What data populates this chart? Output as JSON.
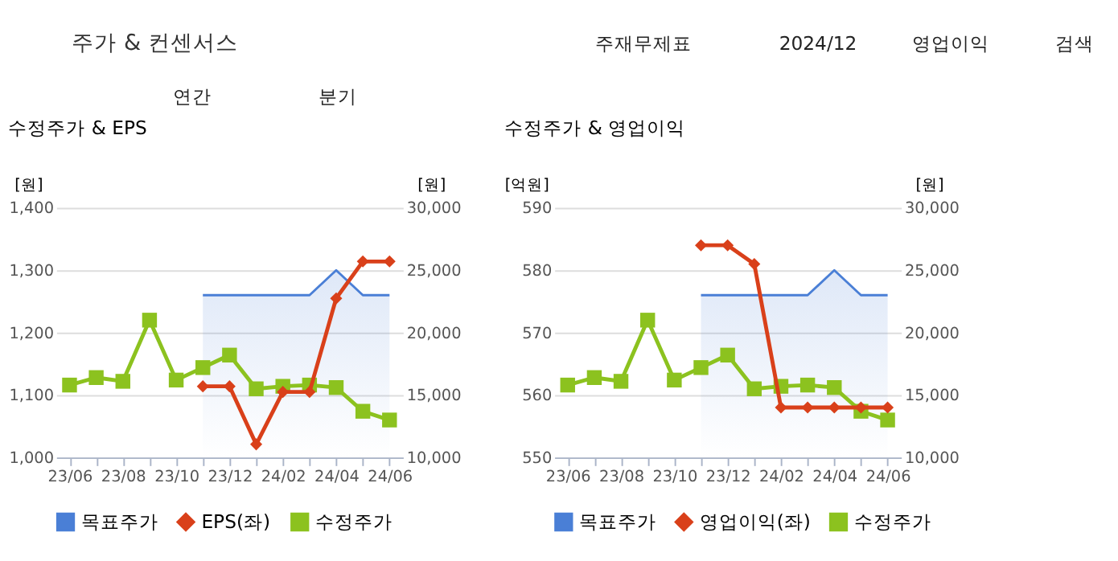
{
  "chart_data": [
    {
      "type": "other",
      "title": "주가 & 컨센서스",
      "annotations": [
        "주재무제표",
        "2024/12",
        "영업이익",
        "검색",
        "연간",
        "분기"
      ]
    },
    {
      "type": "line",
      "title": "수정주가 & EPS",
      "ylabel": "[원]",
      "y2label": "[원]",
      "categories": [
        "23/06",
        null,
        "23/08",
        null,
        "23/10",
        null,
        "23/12",
        null,
        "24/02",
        null,
        "24/04",
        null,
        "24/06"
      ],
      "ylim": [
        1000,
        1400
      ],
      "yticks": [
        {
          "value": 1000,
          "label": "1,000"
        },
        {
          "value": 1100,
          "label": "1,100"
        },
        {
          "value": 1200,
          "label": "1,200"
        },
        {
          "value": 1300,
          "label": "1,300"
        },
        {
          "value": 1400,
          "label": "1,400"
        }
      ],
      "y2lim": [
        10000,
        30000
      ],
      "y2ticks": [
        {
          "value": 10000,
          "label": "10,000"
        },
        {
          "value": 15000,
          "label": "15,000"
        },
        {
          "value": 20000,
          "label": "20,000"
        },
        {
          "value": 25000,
          "label": "25,000"
        },
        {
          "value": 30000,
          "label": "30,000"
        }
      ],
      "grid": "y",
      "legend": "bottom",
      "series": [
        {
          "name": "목표주가",
          "type": "area",
          "axis": "y2",
          "marker": "none",
          "color": "#4a7fd6",
          "values": [
            null,
            null,
            null,
            null,
            null,
            23000,
            23000,
            23000,
            23000,
            23000,
            25000,
            23000,
            23000
          ]
        },
        {
          "name": "EPS(좌)",
          "type": "line",
          "marker": "diamond",
          "color": "#d9401a",
          "values": [
            null,
            null,
            null,
            null,
            null,
            1114,
            1114,
            1021,
            1105,
            1105,
            1255,
            1314,
            1314
          ]
        },
        {
          "name": "수정주가",
          "type": "line",
          "axis": "y2",
          "marker": "square",
          "color": "#8cc21f",
          "values": [
            15800,
            16400,
            16100,
            21000,
            16200,
            17200,
            18200,
            15500,
            15700,
            15800,
            15600,
            13700,
            13000
          ]
        }
      ]
    },
    {
      "type": "line",
      "title": "수정주가 & 영업이익",
      "ylabel": "[억원]",
      "y2label": "[원]",
      "categories": [
        "23/06",
        null,
        "23/08",
        null,
        "23/10",
        null,
        "23/12",
        null,
        "24/02",
        null,
        "24/04",
        null,
        "24/06"
      ],
      "ylim": [
        550,
        590
      ],
      "yticks": [
        550,
        560,
        570,
        580,
        590
      ],
      "y2lim": [
        10000,
        30000
      ],
      "y2ticks": [
        {
          "value": 10000,
          "label": "10,000"
        },
        {
          "value": 15000,
          "label": "15,000"
        },
        {
          "value": 20000,
          "label": "20,000"
        },
        {
          "value": 25000,
          "label": "25,000"
        },
        {
          "value": 30000,
          "label": "30,000"
        }
      ],
      "grid": "y",
      "legend": "bottom",
      "series": [
        {
          "name": "목표주가",
          "type": "area",
          "axis": "y2",
          "marker": "none",
          "color": "#4a7fd6",
          "values": [
            null,
            null,
            null,
            null,
            null,
            23000,
            23000,
            23000,
            23000,
            23000,
            25000,
            23000,
            23000
          ]
        },
        {
          "name": "영업이익(좌)",
          "type": "line",
          "marker": "diamond",
          "color": "#d9401a",
          "values": [
            null,
            null,
            null,
            null,
            null,
            584,
            584,
            581,
            558,
            558,
            558,
            558,
            558
          ]
        },
        {
          "name": "수정주가",
          "type": "line",
          "axis": "y2",
          "marker": "square",
          "color": "#8cc21f",
          "values": [
            15800,
            16400,
            16100,
            21000,
            16200,
            17200,
            18200,
            15500,
            15700,
            15800,
            15600,
            13700,
            13000
          ]
        }
      ]
    }
  ]
}
